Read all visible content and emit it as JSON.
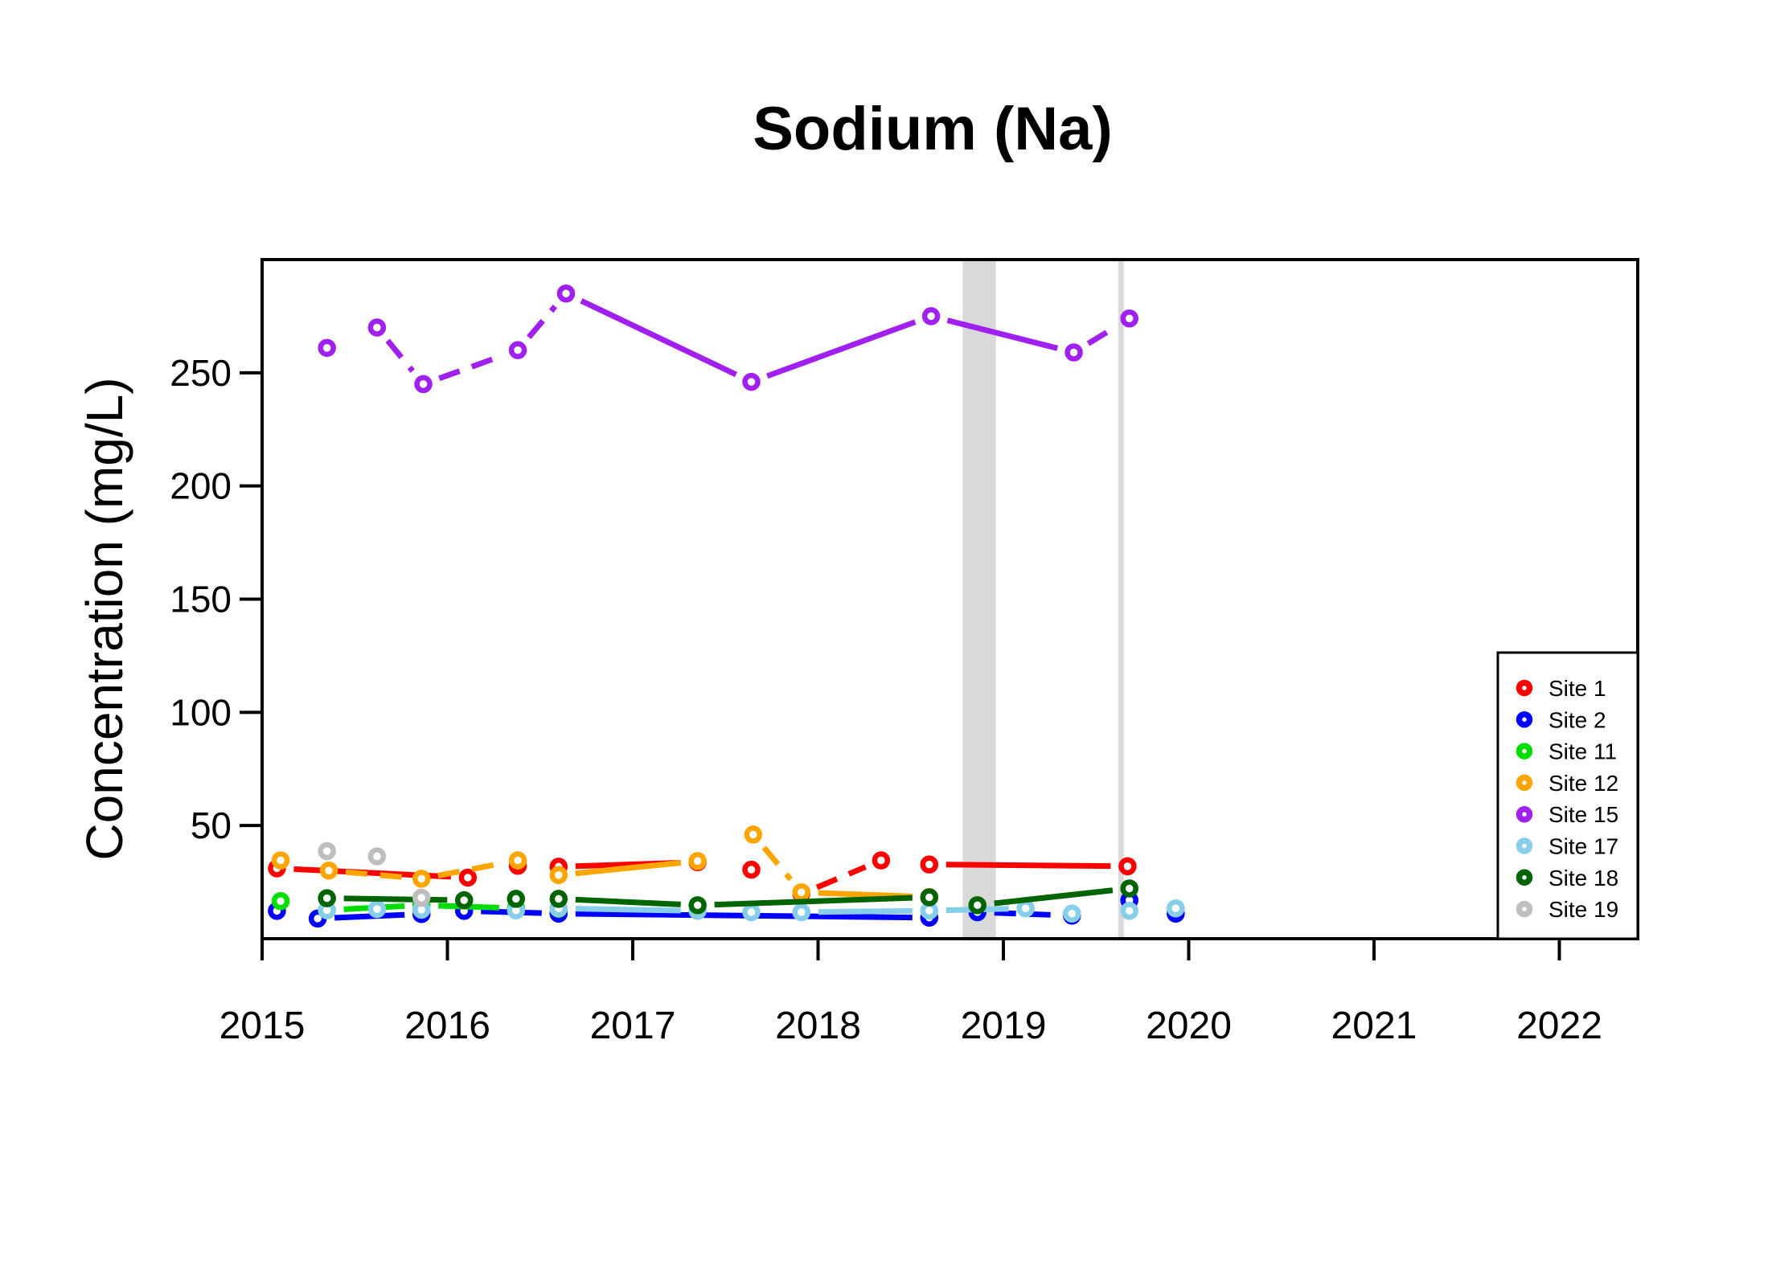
{
  "title": "Sodium (Na)",
  "ylabel": "Concentration (mg/L)",
  "chart_data": {
    "type": "line",
    "title": "Sodium (Na)",
    "xlabel": "",
    "ylabel": "Concentration (mg/L)",
    "xlim": [
      2015,
      2022.42
    ],
    "ylim": [
      0,
      300
    ],
    "grid": false,
    "x_ticks": [
      2015,
      2016,
      2017,
      2018,
      2019,
      2020,
      2021,
      2022
    ],
    "y_ticks": [
      50,
      100,
      150,
      200,
      250
    ],
    "legend_position": "bottomright",
    "marker": "open-circle",
    "shaded_bands": [
      {
        "x0": 2018.78,
        "x1": 2018.96,
        "color": "#D9D9D9"
      },
      {
        "x0": 2019.62,
        "x1": 2019.65,
        "color": "#D9D9D9"
      }
    ],
    "series": [
      {
        "name": "Site 1",
        "color": "#FF0000",
        "points": [
          [
            2015.08,
            31.1
          ],
          [
            2016.11,
            27.0
          ],
          [
            2016.38,
            32.2
          ],
          [
            2016.6,
            31.8
          ],
          [
            2017.35,
            33.8
          ],
          [
            2017.64,
            30.5
          ],
          [
            2017.91,
            19.8
          ],
          [
            2018.34,
            34.6
          ],
          [
            2018.6,
            32.8
          ],
          [
            2019.67,
            32.0
          ]
        ],
        "segments": [
          [
            0,
            1,
            "solid"
          ],
          [
            3,
            4,
            "solid"
          ],
          [
            6,
            7,
            "dash"
          ],
          [
            8,
            9,
            "solid"
          ]
        ]
      },
      {
        "name": "Site 2",
        "color": "#0000FF",
        "points": [
          [
            2015.08,
            12.3
          ],
          [
            2015.3,
            8.9
          ],
          [
            2015.86,
            10.9
          ],
          [
            2016.09,
            12.3
          ],
          [
            2016.6,
            11.1
          ],
          [
            2018.6,
            9.3
          ],
          [
            2018.86,
            11.7
          ],
          [
            2019.37,
            10.2
          ],
          [
            2019.68,
            17.0
          ],
          [
            2019.93,
            11.1
          ]
        ],
        "segments": [
          [
            1,
            2,
            "solid"
          ],
          [
            3,
            4,
            "solid"
          ],
          [
            4,
            5,
            "solid"
          ],
          [
            6,
            7,
            "dash"
          ]
        ]
      },
      {
        "name": "Site 11",
        "color": "#00DD00",
        "points": [
          [
            2015.1,
            16.6
          ],
          [
            2015.35,
            12.6
          ],
          [
            2015.86,
            14.8
          ],
          [
            2016.37,
            13.5
          ],
          [
            2016.6,
            13.2
          ]
        ],
        "segments": [
          [
            1,
            2,
            "solid"
          ],
          [
            2,
            3,
            "solid"
          ]
        ]
      },
      {
        "name": "Site 12",
        "color": "#FFA500",
        "points": [
          [
            2015.1,
            34.6
          ],
          [
            2015.36,
            30.1
          ],
          [
            2015.86,
            26.5
          ],
          [
            2016.38,
            34.6
          ],
          [
            2016.6,
            28.1
          ],
          [
            2017.35,
            34.3
          ],
          [
            2017.65,
            46.0
          ],
          [
            2017.91,
            20.5
          ],
          [
            2018.6,
            18.4
          ]
        ],
        "segments": [
          [
            1,
            2,
            "dash"
          ],
          [
            2,
            3,
            "dash"
          ],
          [
            4,
            5,
            "solid"
          ],
          [
            6,
            7,
            "dash"
          ],
          [
            7,
            8,
            "solid"
          ]
        ]
      },
      {
        "name": "Site 15",
        "color": "#A020F0",
        "points": [
          [
            2015.35,
            261
          ],
          [
            2015.62,
            270
          ],
          [
            2015.87,
            245
          ],
          [
            2016.38,
            260
          ],
          [
            2016.64,
            285
          ],
          [
            2017.64,
            246
          ],
          [
            2018.61,
            275
          ],
          [
            2019.38,
            259
          ],
          [
            2019.68,
            274
          ]
        ],
        "segments": [
          [
            1,
            2,
            "dash"
          ],
          [
            2,
            3,
            "dash"
          ],
          [
            3,
            4,
            "dash"
          ],
          [
            4,
            5,
            "solid"
          ],
          [
            5,
            6,
            "solid"
          ],
          [
            6,
            7,
            "solid"
          ],
          [
            7,
            8,
            "dash"
          ]
        ]
      },
      {
        "name": "Site 17",
        "color": "#87CEEB",
        "points": [
          [
            2015.35,
            12.6
          ],
          [
            2015.62,
            13.1
          ],
          [
            2015.86,
            12.8
          ],
          [
            2016.37,
            12.5
          ],
          [
            2016.6,
            13.4
          ],
          [
            2017.35,
            12.3
          ],
          [
            2017.64,
            11.7
          ],
          [
            2017.91,
            11.7
          ],
          [
            2018.6,
            12.4
          ],
          [
            2019.12,
            13.4
          ],
          [
            2019.37,
            11.1
          ],
          [
            2019.68,
            12.3
          ],
          [
            2019.93,
            13.4
          ]
        ],
        "segments": [
          [
            4,
            5,
            "solid"
          ],
          [
            7,
            8,
            "solid"
          ],
          [
            8,
            9,
            "solid"
          ]
        ]
      },
      {
        "name": "Site 18",
        "color": "#006400",
        "points": [
          [
            2015.35,
            17.9
          ],
          [
            2016.09,
            17.0
          ],
          [
            2016.37,
            17.6
          ],
          [
            2016.6,
            17.6
          ],
          [
            2017.35,
            14.8
          ],
          [
            2018.6,
            18.3
          ],
          [
            2018.86,
            14.8
          ],
          [
            2019.68,
            22.2
          ]
        ],
        "segments": [
          [
            0,
            1,
            "solid"
          ],
          [
            3,
            4,
            "solid"
          ],
          [
            4,
            5,
            "solid"
          ],
          [
            6,
            7,
            "solid"
          ]
        ]
      },
      {
        "name": "Site 19",
        "color": "#BEBEBE",
        "points": [
          [
            2015.35,
            38.7
          ],
          [
            2015.62,
            36.4
          ],
          [
            2015.86,
            18.1
          ]
        ],
        "segments": []
      }
    ]
  }
}
